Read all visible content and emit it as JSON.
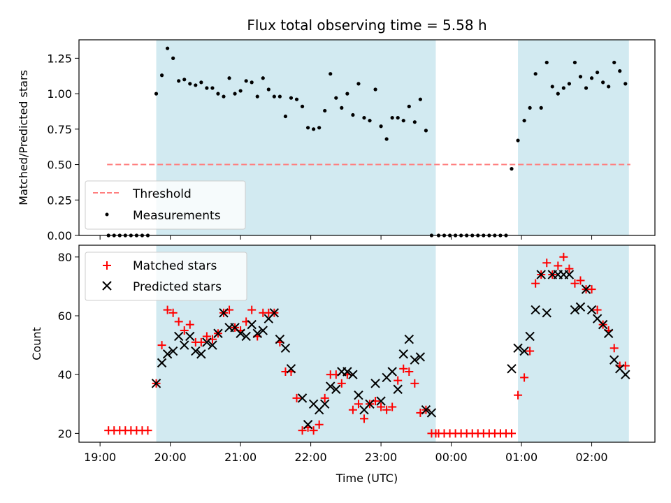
{
  "chart_data": [
    {
      "type": "scatter",
      "title": "Flux total observing time = 5.58 h",
      "xlabel": "",
      "ylabel": "Matched/Predicted stars",
      "ylim": [
        0,
        1.38
      ],
      "yticks": [
        "0.00",
        "0.25",
        "0.50",
        "0.75",
        "1.00",
        "1.25"
      ],
      "ytick_values": [
        0,
        0.25,
        0.5,
        0.75,
        1.0,
        1.25
      ],
      "legend_position": "lower-left",
      "shaded_intervals_hours": [
        [
          19.8,
          23.78
        ],
        [
          24.95,
          26.53
        ]
      ],
      "shade_color": "#add8e6",
      "series": [
        {
          "name": "Threshold",
          "style": "dashed-line",
          "color": "#ff7f7f",
          "x": [
            19.1,
            26.55
          ],
          "y": [
            0.5,
            0.5
          ]
        },
        {
          "name": "Measurements",
          "style": "dot",
          "color": "#000000",
          "x": [
            19.12,
            19.2,
            19.28,
            19.36,
            19.44,
            19.52,
            19.6,
            19.68,
            19.8,
            19.88,
            19.96,
            20.04,
            20.12,
            20.2,
            20.28,
            20.36,
            20.44,
            20.52,
            20.6,
            20.68,
            20.76,
            20.84,
            20.92,
            21.0,
            21.08,
            21.16,
            21.24,
            21.32,
            21.4,
            21.48,
            21.56,
            21.64,
            21.72,
            21.8,
            21.88,
            21.96,
            22.04,
            22.12,
            22.2,
            22.28,
            22.36,
            22.44,
            22.52,
            22.6,
            22.68,
            22.76,
            22.84,
            22.92,
            23.0,
            23.08,
            23.16,
            23.24,
            23.32,
            23.4,
            23.48,
            23.56,
            23.64,
            23.72,
            23.82,
            23.9,
            23.98,
            24.06,
            24.14,
            24.22,
            24.3,
            24.38,
            24.46,
            24.54,
            24.62,
            24.7,
            24.78,
            24.86,
            24.95,
            25.04,
            25.12,
            25.2,
            25.28,
            25.36,
            25.44,
            25.52,
            25.6,
            25.68,
            25.76,
            25.84,
            25.92,
            26.0,
            26.08,
            26.16,
            26.24,
            26.32,
            26.4,
            26.48
          ],
          "y": [
            0,
            0,
            0,
            0,
            0,
            0,
            0,
            0,
            1.0,
            1.13,
            1.32,
            1.25,
            1.09,
            1.1,
            1.07,
            1.06,
            1.08,
            1.04,
            1.04,
            1.0,
            0.98,
            1.11,
            1.0,
            1.02,
            1.09,
            1.08,
            0.98,
            1.11,
            1.03,
            0.98,
            0.98,
            0.84,
            0.97,
            0.96,
            0.91,
            0.76,
            0.75,
            0.76,
            0.88,
            1.14,
            0.97,
            0.9,
            1.0,
            0.85,
            1.07,
            0.83,
            0.81,
            1.03,
            0.77,
            0.68,
            0.83,
            0.83,
            0.81,
            0.91,
            0.8,
            0.96,
            0.74,
            0,
            0,
            0,
            0,
            0,
            0,
            0,
            0,
            0,
            0,
            0,
            0,
            0,
            0,
            0.47,
            0.67,
            0.81,
            0.9,
            1.14,
            0.9,
            1.22,
            1.05,
            1.0,
            1.04,
            1.07,
            1.22,
            1.12,
            1.04,
            1.11,
            1.15,
            1.08,
            1.05,
            1.22,
            1.16,
            1.07
          ]
        }
      ]
    },
    {
      "type": "scatter",
      "title": "",
      "xlabel": "Time (UTC)",
      "ylabel": "Count",
      "ylim": [
        17,
        84
      ],
      "yticks": [
        "20",
        "40",
        "60",
        "80"
      ],
      "ytick_values": [
        20,
        40,
        60,
        80
      ],
      "xlim_hours": [
        18.7,
        26.9
      ],
      "xticks": [
        "19:00",
        "20:00",
        "21:00",
        "22:00",
        "23:00",
        "00:00",
        "01:00",
        "02:00"
      ],
      "xtick_values": [
        19,
        20,
        21,
        22,
        23,
        24,
        25,
        26
      ],
      "legend_position": "upper-left",
      "shaded_intervals_hours": [
        [
          19.8,
          23.78
        ],
        [
          24.95,
          26.53
        ]
      ],
      "shade_color": "#add8e6",
      "series": [
        {
          "name": "Matched stars",
          "style": "plus",
          "color": "#ff0000",
          "x": [
            19.12,
            19.2,
            19.28,
            19.36,
            19.44,
            19.52,
            19.6,
            19.68,
            19.8,
            19.88,
            19.96,
            20.04,
            20.12,
            20.2,
            20.28,
            20.36,
            20.44,
            20.52,
            20.6,
            20.68,
            20.76,
            20.84,
            20.92,
            21.0,
            21.08,
            21.16,
            21.24,
            21.32,
            21.4,
            21.48,
            21.56,
            21.64,
            21.72,
            21.8,
            21.88,
            21.96,
            22.04,
            22.12,
            22.2,
            22.28,
            22.36,
            22.44,
            22.52,
            22.6,
            22.68,
            22.76,
            22.84,
            22.92,
            23.0,
            23.08,
            23.16,
            23.24,
            23.32,
            23.4,
            23.48,
            23.56,
            23.64,
            23.72,
            23.78,
            23.82,
            23.9,
            23.98,
            24.06,
            24.14,
            24.22,
            24.3,
            24.38,
            24.46,
            24.54,
            24.62,
            24.7,
            24.78,
            24.86,
            24.95,
            25.04,
            25.12,
            25.2,
            25.28,
            25.36,
            25.44,
            25.52,
            25.6,
            25.68,
            25.76,
            25.84,
            25.92,
            26.0,
            26.08,
            26.16,
            26.24,
            26.32,
            26.4,
            26.48
          ],
          "y": [
            21,
            21,
            21,
            21,
            21,
            21,
            21,
            21,
            37,
            50,
            62,
            61,
            58,
            55,
            57,
            51,
            51,
            53,
            52,
            54,
            61,
            62,
            56,
            55,
            58,
            62,
            53,
            61,
            61,
            61,
            51,
            41,
            41,
            32,
            21,
            22,
            21,
            23,
            32,
            40,
            40,
            37,
            40,
            28,
            30,
            25,
            30,
            31,
            29,
            28,
            29,
            38,
            42,
            41,
            37,
            27,
            28,
            20,
            20,
            20,
            20,
            20,
            20,
            20,
            20,
            20,
            20,
            20,
            20,
            20,
            20,
            20,
            20,
            33,
            39,
            48,
            71,
            74,
            78,
            74,
            77,
            80,
            76,
            71,
            72,
            69,
            69,
            62,
            57,
            55,
            49,
            43,
            43
          ]
        },
        {
          "name": "Predicted stars",
          "style": "x",
          "color": "#000000",
          "x": [
            19.8,
            19.88,
            19.96,
            20.04,
            20.12,
            20.2,
            20.28,
            20.36,
            20.44,
            20.52,
            20.6,
            20.68,
            20.76,
            20.84,
            20.92,
            21.0,
            21.08,
            21.16,
            21.24,
            21.32,
            21.4,
            21.48,
            21.56,
            21.64,
            21.72,
            21.88,
            21.96,
            22.04,
            22.12,
            22.2,
            22.28,
            22.36,
            22.44,
            22.52,
            22.6,
            22.68,
            22.76,
            22.84,
            22.92,
            23.0,
            23.08,
            23.16,
            23.24,
            23.32,
            23.4,
            23.48,
            23.56,
            23.64,
            23.72,
            24.86,
            24.95,
            25.04,
            25.12,
            25.2,
            25.28,
            25.36,
            25.44,
            25.52,
            25.6,
            25.68,
            25.76,
            25.84,
            25.92,
            26.0,
            26.08,
            26.16,
            26.24,
            26.32,
            26.4,
            26.48
          ],
          "y": [
            37,
            44,
            47,
            48,
            53,
            50,
            53,
            48,
            47,
            51,
            50,
            54,
            61,
            56,
            56,
            54,
            53,
            57,
            54,
            55,
            59,
            61,
            52,
            49,
            42,
            32,
            23,
            30,
            28,
            30,
            36,
            35,
            41,
            41,
            40,
            33,
            28,
            30,
            37,
            31,
            39,
            41,
            35,
            47,
            52,
            45,
            46,
            28,
            27,
            42,
            49,
            48,
            53,
            62,
            74,
            61,
            74,
            74,
            74,
            74,
            62,
            63,
            69,
            62,
            59,
            57,
            54,
            45,
            42,
            40
          ]
        }
      ]
    }
  ]
}
